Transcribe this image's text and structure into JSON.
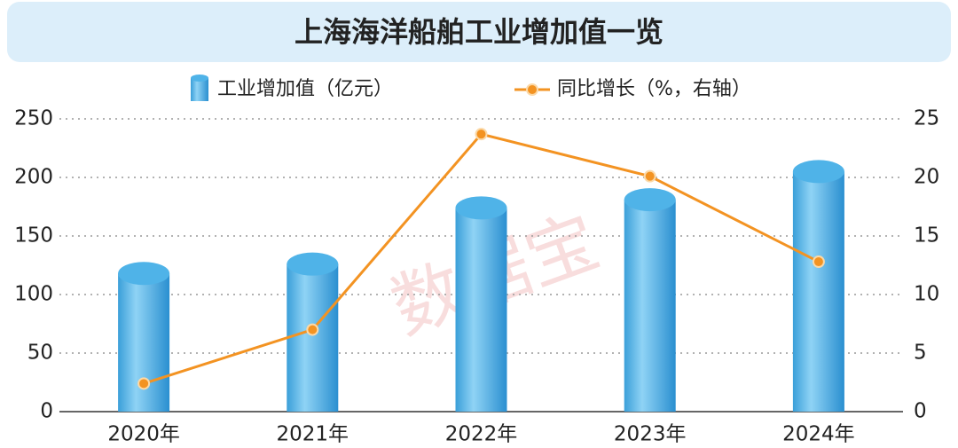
{
  "chart_data": {
    "type": "bar-line",
    "title": "上海海洋船舶工业增加值一览",
    "watermark": "数据宝",
    "categories": [
      "2020年",
      "2021年",
      "2022年",
      "2023年",
      "2024年"
    ],
    "series": [
      {
        "name": "工业增加值（亿元）",
        "type": "bar",
        "color": "#4fb3e8",
        "values": [
          118,
          126,
          174,
          181,
          205
        ]
      },
      {
        "name": "同比增长（%，右轴）",
        "type": "line",
        "axis": "y2",
        "color": "#f39322",
        "values": [
          2.4,
          7.0,
          23.7,
          20.1,
          12.8
        ]
      }
    ],
    "ylim": [
      0,
      250
    ],
    "yticks": [
      0,
      50,
      100,
      150,
      200,
      250
    ],
    "y2lim": [
      0,
      25
    ],
    "y2ticks": [
      0,
      5,
      10,
      15,
      20,
      25
    ],
    "grid": true
  }
}
